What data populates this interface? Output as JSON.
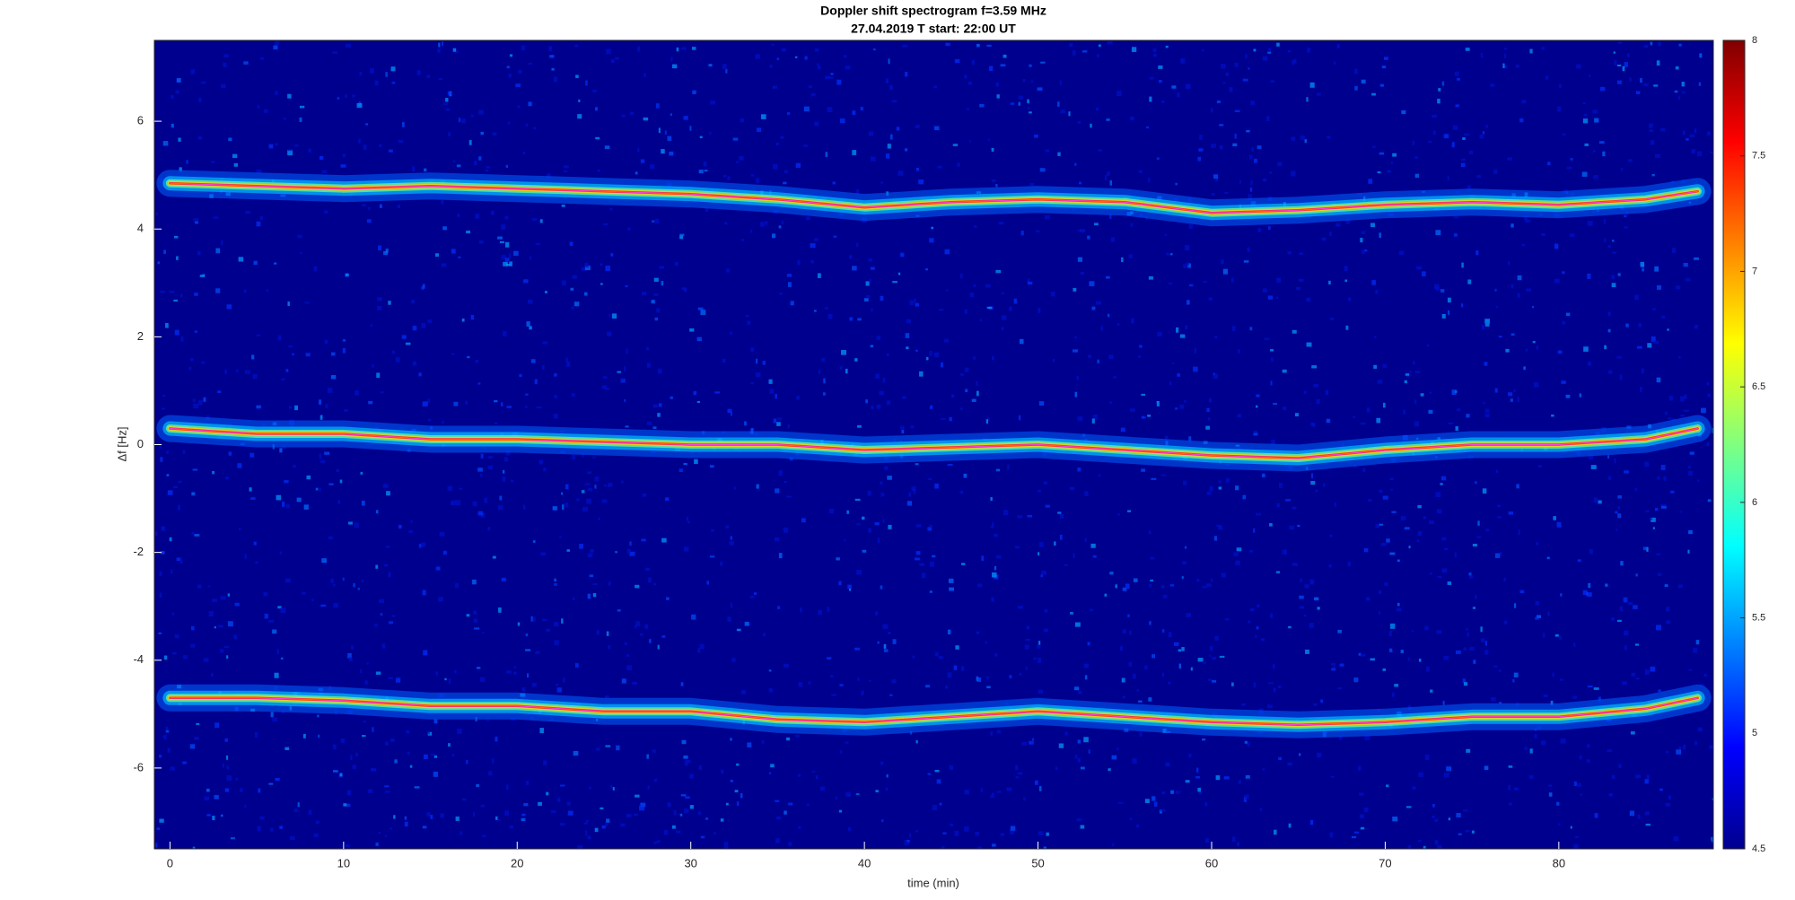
{
  "chart_data": {
    "type": "spectrogram",
    "title": "Doppler shift spectrogram f=3.59 MHz",
    "subtitle": "27.04.2019   T start: 22:00 UT",
    "x_label": "time (min)",
    "y_label": "Δf [Hz]",
    "xlim": [
      -0.9,
      88.9
    ],
    "ylim": [
      -7.5,
      7.5
    ],
    "xticks": [
      0,
      10,
      20,
      30,
      40,
      50,
      60,
      70,
      80
    ],
    "yticks": [
      -6,
      -4,
      -2,
      0,
      2,
      4,
      6
    ],
    "clim": [
      4.5,
      8
    ],
    "cticks": [
      4.5,
      5,
      5.5,
      6,
      6.5,
      7,
      7.5,
      8
    ],
    "colormap": "jet",
    "background": "#00008f",
    "x": [
      0,
      5,
      10,
      15,
      20,
      25,
      30,
      35,
      40,
      45,
      50,
      55,
      60,
      65,
      70,
      75,
      80,
      85,
      88
    ],
    "traces": [
      {
        "values": [
          4.85,
          4.8,
          4.75,
          4.8,
          4.75,
          4.7,
          4.65,
          4.55,
          4.4,
          4.5,
          4.55,
          4.5,
          4.3,
          4.35,
          4.45,
          4.5,
          4.45,
          4.55,
          4.7
        ]
      },
      {
        "values": [
          0.3,
          0.2,
          0.2,
          0.1,
          0.1,
          0.05,
          0,
          0,
          -0.1,
          -0.05,
          0,
          -0.1,
          -0.2,
          -0.25,
          -0.1,
          0,
          0,
          0.1,
          0.3
        ]
      },
      {
        "values": [
          -4.7,
          -4.7,
          -4.75,
          -4.85,
          -4.85,
          -4.95,
          -4.95,
          -5.1,
          -5.15,
          -5.05,
          -4.95,
          -5.05,
          -5.15,
          -5.2,
          -5.15,
          -5.05,
          -5.05,
          -4.9,
          -4.7
        ]
      }
    ]
  }
}
